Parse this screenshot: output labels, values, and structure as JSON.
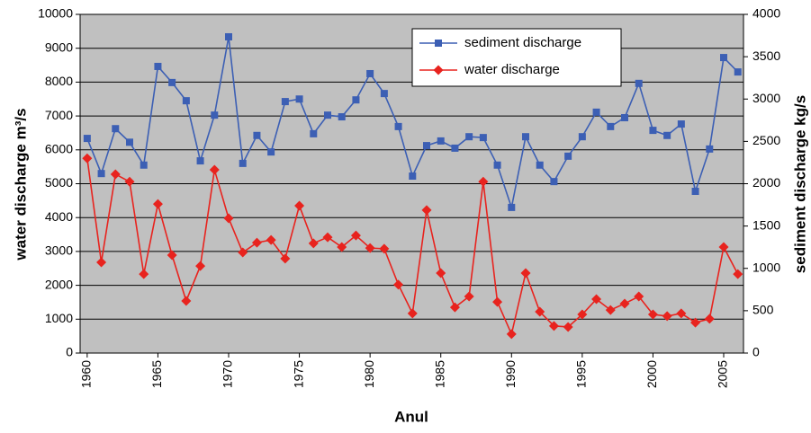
{
  "chart_data": {
    "type": "line",
    "x_label": "Anul",
    "y_label": "water discharge m³/s",
    "y2_label": "sediment discharge kg/s",
    "x": [
      1960,
      1961,
      1962,
      1963,
      1964,
      1965,
      1966,
      1967,
      1968,
      1969,
      1970,
      1971,
      1972,
      1973,
      1974,
      1975,
      1976,
      1977,
      1978,
      1979,
      1980,
      1981,
      1982,
      1983,
      1984,
      1985,
      1986,
      1987,
      1988,
      1989,
      1990,
      1991,
      1992,
      1993,
      1994,
      1995,
      1996,
      1997,
      1998,
      1999,
      2000,
      2001,
      2002,
      2003,
      2004,
      2005,
      2006
    ],
    "series": [
      {
        "name": "sediment discharge",
        "color": "#3c5fb4",
        "marker": "square",
        "axis": "y2",
        "values": [
          2535,
          2120,
          2650,
          2490,
          2220,
          3385,
          3195,
          2980,
          2270,
          2810,
          3735,
          2240,
          2570,
          2375,
          2970,
          3000,
          2590,
          2810,
          2790,
          2990,
          3300,
          3065,
          2675,
          2090,
          2450,
          2505,
          2420,
          2555,
          2545,
          2220,
          1720,
          2555,
          2220,
          2025,
          2325,
          2555,
          2845,
          2675,
          2780,
          3185,
          2630,
          2570,
          2705,
          1910,
          2410,
          3490,
          3320
        ]
      },
      {
        "name": "water discharge",
        "color": "#e8231e",
        "marker": "diamond",
        "axis": "y",
        "values": [
          5750,
          2680,
          5280,
          5060,
          2330,
          4400,
          2890,
          1540,
          2570,
          5410,
          3980,
          2970,
          3260,
          3340,
          2790,
          4350,
          3240,
          3420,
          3130,
          3470,
          3100,
          3080,
          2020,
          1170,
          4220,
          2360,
          1350,
          1670,
          5060,
          1510,
          560,
          2360,
          1220,
          800,
          770,
          1140,
          1590,
          1270,
          1460,
          1670,
          1140,
          1090,
          1170,
          900,
          1010,
          3130,
          2330
        ]
      }
    ],
    "xlim": [
      1959.5,
      2006.4
    ],
    "xticks": [
      1960,
      1965,
      1970,
      1975,
      1980,
      1985,
      1990,
      1995,
      2000,
      2005
    ],
    "ylim": [
      0,
      10000
    ],
    "yticks": [
      0,
      1000,
      2000,
      3000,
      4000,
      5000,
      6000,
      7000,
      8000,
      9000,
      10000
    ],
    "y2lim": [
      0,
      4000
    ],
    "y2ticks": [
      0,
      500,
      1000,
      1500,
      2000,
      2500,
      3000,
      3500,
      4000
    ],
    "grid": true,
    "legend": "top-right",
    "plot_background": "#c0c0c0"
  }
}
